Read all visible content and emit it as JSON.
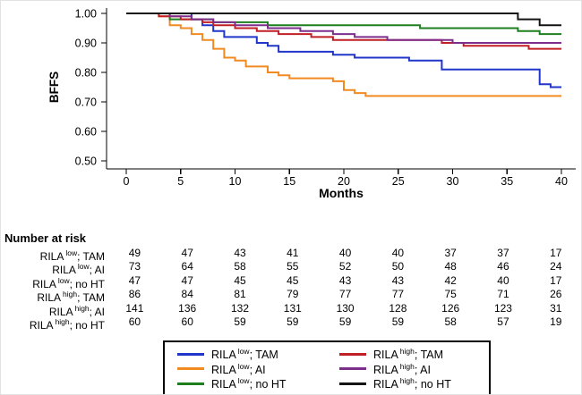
{
  "chart_data": {
    "type": "line",
    "subtype": "kaplan-meier-step",
    "title": "",
    "xlabel": "Months",
    "ylabel": "BFFS",
    "xlim": [
      0,
      40
    ],
    "ylim": [
      0.5,
      1.0
    ],
    "grid": false,
    "xticks": [
      0,
      5,
      10,
      15,
      20,
      25,
      30,
      35,
      40
    ],
    "xticklabels": [
      "0",
      "5",
      "10",
      "15",
      "20",
      "25",
      "30",
      "35",
      "40"
    ],
    "yticks": [
      1.0,
      0.9,
      0.8,
      0.7,
      0.6,
      0.5
    ],
    "yticklabels": [
      "1.00",
      "0.90",
      "0.80",
      "0.70",
      "0.60",
      "0.50"
    ],
    "series": [
      {
        "id": "rila-low-tam",
        "name": "RILA low; TAM",
        "color": "#2036c9",
        "points": [
          [
            0,
            1.0
          ],
          [
            6,
            0.98
          ],
          [
            7,
            0.96
          ],
          [
            8,
            0.94
          ],
          [
            9,
            0.92
          ],
          [
            12,
            0.9
          ],
          [
            13,
            0.89
          ],
          [
            14,
            0.87
          ],
          [
            19,
            0.86
          ],
          [
            21,
            0.85
          ],
          [
            26,
            0.84
          ],
          [
            29,
            0.81
          ],
          [
            38,
            0.76
          ],
          [
            39,
            0.75
          ],
          [
            40,
            0.75
          ]
        ]
      },
      {
        "id": "rila-low-ai",
        "name": "RILA low; AI",
        "color": "#f18a21",
        "points": [
          [
            0,
            1.0
          ],
          [
            3,
            0.99
          ],
          [
            4,
            0.96
          ],
          [
            5,
            0.95
          ],
          [
            6,
            0.93
          ],
          [
            7,
            0.91
          ],
          [
            8,
            0.88
          ],
          [
            9,
            0.85
          ],
          [
            10,
            0.84
          ],
          [
            11,
            0.82
          ],
          [
            13,
            0.8
          ],
          [
            14,
            0.79
          ],
          [
            15,
            0.78
          ],
          [
            19,
            0.77
          ],
          [
            20,
            0.74
          ],
          [
            21,
            0.73
          ],
          [
            22,
            0.72
          ],
          [
            40,
            0.72
          ]
        ]
      },
      {
        "id": "rila-low-noht",
        "name": "RILA low; no HT",
        "color": "#1e7f1e",
        "points": [
          [
            0,
            1.0
          ],
          [
            4,
            0.98
          ],
          [
            8,
            0.97
          ],
          [
            13,
            0.96
          ],
          [
            27,
            0.95
          ],
          [
            36,
            0.94
          ],
          [
            38,
            0.93
          ],
          [
            40,
            0.93
          ]
        ]
      },
      {
        "id": "rila-high-tam",
        "name": "RILA high; TAM",
        "color": "#c11f26",
        "points": [
          [
            0,
            1.0
          ],
          [
            3,
            0.99
          ],
          [
            5,
            0.98
          ],
          [
            7,
            0.97
          ],
          [
            8,
            0.96
          ],
          [
            10,
            0.95
          ],
          [
            12,
            0.94
          ],
          [
            14,
            0.93
          ],
          [
            17,
            0.92
          ],
          [
            19,
            0.91
          ],
          [
            29,
            0.9
          ],
          [
            31,
            0.89
          ],
          [
            37,
            0.88
          ],
          [
            40,
            0.88
          ]
        ]
      },
      {
        "id": "rila-high-ai",
        "name": "RILA high; AI",
        "color": "#7d2e8d",
        "points": [
          [
            0,
            1.0
          ],
          [
            4,
            0.99
          ],
          [
            6,
            0.98
          ],
          [
            8,
            0.97
          ],
          [
            10,
            0.96
          ],
          [
            13,
            0.95
          ],
          [
            16,
            0.94
          ],
          [
            19,
            0.93
          ],
          [
            21,
            0.92
          ],
          [
            24,
            0.91
          ],
          [
            30,
            0.9
          ],
          [
            40,
            0.9
          ]
        ]
      },
      {
        "id": "rila-high-noht",
        "name": "RILA high; no HT",
        "color": "#141414",
        "points": [
          [
            0,
            1.0
          ],
          [
            36,
            0.98
          ],
          [
            38,
            0.96
          ],
          [
            40,
            0.96
          ]
        ]
      }
    ],
    "legend_position": "bottom"
  },
  "risk_table": {
    "title": "Number at risk",
    "columns": [
      0,
      5,
      10,
      15,
      20,
      25,
      30,
      35,
      40
    ],
    "rows": [
      {
        "prefix": "RILA",
        "sup": "low",
        "suffix": "; TAM",
        "counts": [
          49,
          47,
          43,
          41,
          40,
          40,
          37,
          37,
          17
        ]
      },
      {
        "prefix": "RILA",
        "sup": "low",
        "suffix": "; AI",
        "counts": [
          73,
          64,
          58,
          55,
          52,
          50,
          48,
          46,
          24
        ]
      },
      {
        "prefix": "RILA",
        "sup": "low",
        "suffix": "; no HT",
        "counts": [
          47,
          47,
          45,
          45,
          43,
          43,
          42,
          40,
          17
        ]
      },
      {
        "prefix": "RILA",
        "sup": "high",
        "suffix": "; TAM",
        "counts": [
          86,
          84,
          81,
          79,
          77,
          77,
          75,
          71,
          26
        ]
      },
      {
        "prefix": "RILA",
        "sup": "high",
        "suffix": "; AI",
        "counts": [
          141,
          136,
          132,
          131,
          130,
          128,
          126,
          123,
          31
        ]
      },
      {
        "prefix": "RILA",
        "sup": "high",
        "suffix": "; no HT",
        "counts": [
          60,
          60,
          59,
          59,
          59,
          59,
          58,
          57,
          19
        ]
      }
    ]
  },
  "legend": {
    "items": [
      {
        "prefix": "RILA",
        "sup": "low",
        "suffix": "; TAM",
        "color": "#2036c9"
      },
      {
        "prefix": "RILA",
        "sup": "low",
        "suffix": "; AI",
        "color": "#f18a21"
      },
      {
        "prefix": "RILA",
        "sup": "low",
        "suffix": "; no HT",
        "color": "#1e7f1e"
      },
      {
        "prefix": "RILA",
        "sup": "high",
        "suffix": "; TAM",
        "color": "#c11f26"
      },
      {
        "prefix": "RILA",
        "sup": "high",
        "suffix": "; AI",
        "color": "#7d2e8d"
      },
      {
        "prefix": "RILA",
        "sup": "high",
        "suffix": "; no HT",
        "color": "#141414"
      }
    ]
  }
}
